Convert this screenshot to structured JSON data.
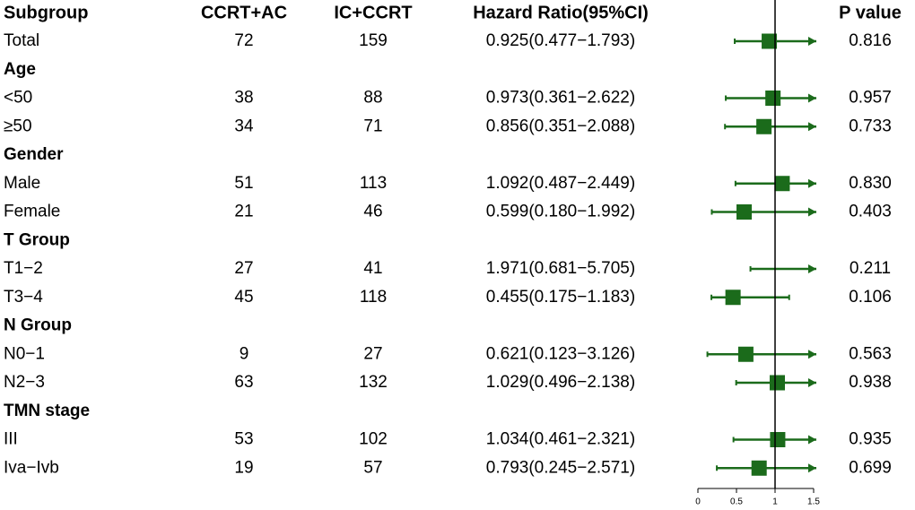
{
  "chart_data": {
    "type": "forest",
    "headers": [
      "Subgroup",
      "CCRT+AC",
      "IC+CCRT",
      "Hazard  Ratio(95%CI)",
      "P value"
    ],
    "color": "#1b6b1b",
    "xlim": [
      0,
      1.5
    ],
    "xticks": [
      0,
      0.5,
      1,
      1.5
    ],
    "reference": 1,
    "rows": [
      {
        "label": "Total",
        "n1": "72",
        "n2": "159",
        "hr_ci": "0.925(0.477−1.793)",
        "hr": 0.925,
        "lower": 0.477,
        "upper": 1.793,
        "p": "0.816"
      },
      {
        "label": "Age"
      },
      {
        "label": "<50",
        "n1": "38",
        "n2": "88",
        "hr_ci": "0.973(0.361−2.622)",
        "hr": 0.973,
        "lower": 0.361,
        "upper": 2.622,
        "p": "0.957"
      },
      {
        "label": "≥50",
        "n1": "34",
        "n2": "71",
        "hr_ci": "0.856(0.351−2.088)",
        "hr": 0.856,
        "lower": 0.351,
        "upper": 2.088,
        "p": "0.733"
      },
      {
        "label": "Gender"
      },
      {
        "label": "Male",
        "n1": "51",
        "n2": "113",
        "hr_ci": "1.092(0.487−2.449)",
        "hr": 1.092,
        "lower": 0.487,
        "upper": 2.449,
        "p": "0.830"
      },
      {
        "label": "Female",
        "n1": "21",
        "n2": "46",
        "hr_ci": "0.599(0.180−1.992)",
        "hr": 0.599,
        "lower": 0.18,
        "upper": 1.992,
        "p": "0.403"
      },
      {
        "label": "T Group"
      },
      {
        "label": "T1−2",
        "n1": "27",
        "n2": "41",
        "hr_ci": "1.971(0.681−5.705)",
        "hr": 1.971,
        "lower": 0.681,
        "upper": 5.705,
        "p": "0.211"
      },
      {
        "label": "T3−4",
        "n1": "45",
        "n2": "118",
        "hr_ci": "0.455(0.175−1.183)",
        "hr": 0.455,
        "lower": 0.175,
        "upper": 1.183,
        "p": "0.106"
      },
      {
        "label": "N Group"
      },
      {
        "label": "N0−1",
        "n1": "9",
        "n2": "27",
        "hr_ci": "0.621(0.123−3.126)",
        "hr": 0.621,
        "lower": 0.123,
        "upper": 3.126,
        "p": "0.563"
      },
      {
        "label": "N2−3",
        "n1": "63",
        "n2": "132",
        "hr_ci": "1.029(0.496−2.138)",
        "hr": 1.029,
        "lower": 0.496,
        "upper": 2.138,
        "p": "0.938"
      },
      {
        "label": "TMN stage"
      },
      {
        "label": "III",
        "n1": "53",
        "n2": "102",
        "hr_ci": "1.034(0.461−2.321)",
        "hr": 1.034,
        "lower": 0.461,
        "upper": 2.321,
        "p": "0.935"
      },
      {
        "label": "Iva−Ivb",
        "n1": "19",
        "n2": "57",
        "hr_ci": "0.793(0.245−2.571)",
        "hr": 0.793,
        "lower": 0.245,
        "upper": 2.571,
        "p": "0.699"
      }
    ]
  }
}
